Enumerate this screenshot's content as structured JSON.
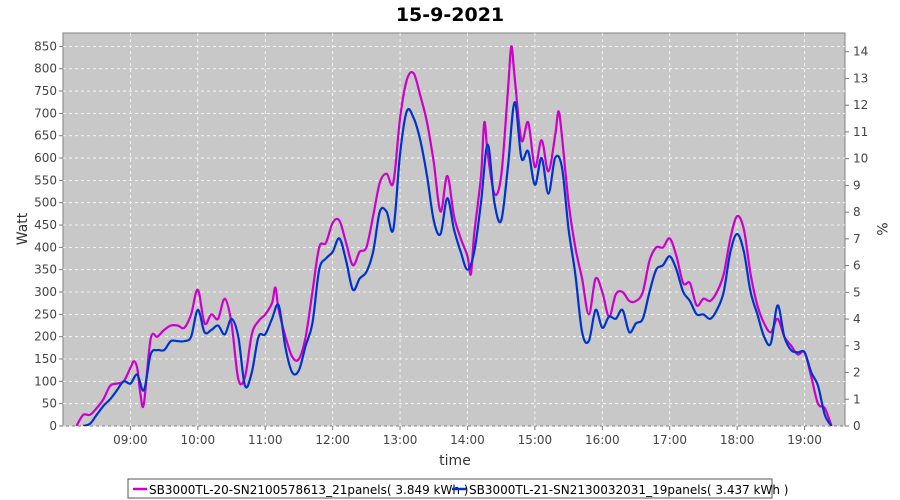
{
  "chart_data": {
    "type": "line",
    "title": "15-9-2021",
    "xlabel": "time",
    "ylabel": "Watt",
    "y2label": "%",
    "xlim": [
      8.0,
      19.6
    ],
    "ylim": [
      0,
      880
    ],
    "y2lim": [
      0,
      14.7
    ],
    "x_ticks": [
      "09:00",
      "10:00",
      "11:00",
      "12:00",
      "13:00",
      "14:00",
      "15:00",
      "16:00",
      "17:00",
      "18:00",
      "19:00"
    ],
    "y_ticks": [
      0,
      50,
      100,
      150,
      200,
      250,
      300,
      350,
      400,
      450,
      500,
      550,
      600,
      650,
      700,
      750,
      800,
      850
    ],
    "y2_ticks": [
      0,
      1,
      2,
      3,
      4,
      5,
      6,
      7,
      8,
      9,
      10,
      11,
      12,
      13,
      14
    ],
    "grid": true,
    "legend_position": "bottom",
    "background": "#c8c8c8",
    "series": [
      {
        "name": "SB3000TL-20-SN2100578613_21panels( 3.849 kWh )",
        "color": "#cc00cc",
        "points": [
          [
            8.2,
            0
          ],
          [
            8.3,
            25
          ],
          [
            8.4,
            25
          ],
          [
            8.5,
            40
          ],
          [
            8.6,
            60
          ],
          [
            8.7,
            90
          ],
          [
            8.8,
            95
          ],
          [
            8.9,
            100
          ],
          [
            9.0,
            130
          ],
          [
            9.05,
            145
          ],
          [
            9.1,
            130
          ],
          [
            9.15,
            70
          ],
          [
            9.2,
            50
          ],
          [
            9.3,
            195
          ],
          [
            9.4,
            200
          ],
          [
            9.5,
            215
          ],
          [
            9.6,
            225
          ],
          [
            9.7,
            225
          ],
          [
            9.8,
            220
          ],
          [
            9.9,
            250
          ],
          [
            10.0,
            305
          ],
          [
            10.1,
            230
          ],
          [
            10.2,
            250
          ],
          [
            10.3,
            240
          ],
          [
            10.4,
            285
          ],
          [
            10.5,
            230
          ],
          [
            10.6,
            105
          ],
          [
            10.7,
            110
          ],
          [
            10.8,
            205
          ],
          [
            10.9,
            235
          ],
          [
            11.0,
            250
          ],
          [
            11.1,
            275
          ],
          [
            11.15,
            310
          ],
          [
            11.2,
            260
          ],
          [
            11.3,
            200
          ],
          [
            11.4,
            155
          ],
          [
            11.5,
            150
          ],
          [
            11.6,
            200
          ],
          [
            11.7,
            300
          ],
          [
            11.8,
            400
          ],
          [
            11.9,
            410
          ],
          [
            12.0,
            455
          ],
          [
            12.1,
            460
          ],
          [
            12.2,
            410
          ],
          [
            12.3,
            360
          ],
          [
            12.4,
            390
          ],
          [
            12.5,
            400
          ],
          [
            12.6,
            470
          ],
          [
            12.7,
            545
          ],
          [
            12.8,
            565
          ],
          [
            12.9,
            545
          ],
          [
            13.0,
            690
          ],
          [
            13.1,
            775
          ],
          [
            13.2,
            790
          ],
          [
            13.3,
            740
          ],
          [
            13.4,
            680
          ],
          [
            13.5,
            590
          ],
          [
            13.6,
            480
          ],
          [
            13.7,
            560
          ],
          [
            13.8,
            470
          ],
          [
            13.9,
            420
          ],
          [
            14.0,
            380
          ],
          [
            14.05,
            340
          ],
          [
            14.1,
            430
          ],
          [
            14.2,
            560
          ],
          [
            14.25,
            680
          ],
          [
            14.3,
            610
          ],
          [
            14.4,
            520
          ],
          [
            14.5,
            560
          ],
          [
            14.6,
            750
          ],
          [
            14.65,
            850
          ],
          [
            14.7,
            780
          ],
          [
            14.8,
            640
          ],
          [
            14.9,
            680
          ],
          [
            15.0,
            580
          ],
          [
            15.1,
            640
          ],
          [
            15.2,
            570
          ],
          [
            15.3,
            650
          ],
          [
            15.35,
            705
          ],
          [
            15.4,
            650
          ],
          [
            15.5,
            500
          ],
          [
            15.6,
            400
          ],
          [
            15.7,
            330
          ],
          [
            15.8,
            250
          ],
          [
            15.9,
            330
          ],
          [
            16.0,
            300
          ],
          [
            16.1,
            245
          ],
          [
            16.2,
            295
          ],
          [
            16.3,
            300
          ],
          [
            16.4,
            280
          ],
          [
            16.5,
            280
          ],
          [
            16.6,
            300
          ],
          [
            16.7,
            370
          ],
          [
            16.8,
            400
          ],
          [
            16.9,
            400
          ],
          [
            17.0,
            420
          ],
          [
            17.1,
            380
          ],
          [
            17.2,
            320
          ],
          [
            17.3,
            320
          ],
          [
            17.4,
            270
          ],
          [
            17.5,
            285
          ],
          [
            17.6,
            280
          ],
          [
            17.7,
            300
          ],
          [
            17.8,
            340
          ],
          [
            17.9,
            420
          ],
          [
            18.0,
            470
          ],
          [
            18.1,
            440
          ],
          [
            18.2,
            340
          ],
          [
            18.3,
            270
          ],
          [
            18.4,
            230
          ],
          [
            18.5,
            210
          ],
          [
            18.6,
            240
          ],
          [
            18.7,
            200
          ],
          [
            18.8,
            180
          ],
          [
            18.9,
            160
          ],
          [
            19.0,
            165
          ],
          [
            19.1,
            110
          ],
          [
            19.2,
            50
          ],
          [
            19.3,
            40
          ],
          [
            19.4,
            0
          ]
        ]
      },
      {
        "name": "SB3000TL-21-SN2130032031_19panels( 3.437 kWh )",
        "color": "#0033cc",
        "points": [
          [
            8.3,
            0
          ],
          [
            8.4,
            5
          ],
          [
            8.5,
            25
          ],
          [
            8.6,
            45
          ],
          [
            8.7,
            60
          ],
          [
            8.8,
            80
          ],
          [
            8.9,
            100
          ],
          [
            9.0,
            95
          ],
          [
            9.1,
            115
          ],
          [
            9.2,
            80
          ],
          [
            9.3,
            160
          ],
          [
            9.4,
            170
          ],
          [
            9.5,
            170
          ],
          [
            9.6,
            190
          ],
          [
            9.7,
            190
          ],
          [
            9.8,
            190
          ],
          [
            9.9,
            200
          ],
          [
            10.0,
            260
          ],
          [
            10.1,
            210
          ],
          [
            10.2,
            215
          ],
          [
            10.3,
            225
          ],
          [
            10.4,
            205
          ],
          [
            10.5,
            240
          ],
          [
            10.6,
            200
          ],
          [
            10.7,
            90
          ],
          [
            10.8,
            120
          ],
          [
            10.9,
            200
          ],
          [
            11.0,
            205
          ],
          [
            11.1,
            240
          ],
          [
            11.2,
            270
          ],
          [
            11.3,
            175
          ],
          [
            11.4,
            120
          ],
          [
            11.5,
            125
          ],
          [
            11.6,
            180
          ],
          [
            11.7,
            230
          ],
          [
            11.8,
            350
          ],
          [
            11.9,
            375
          ],
          [
            12.0,
            390
          ],
          [
            12.1,
            420
          ],
          [
            12.2,
            370
          ],
          [
            12.3,
            305
          ],
          [
            12.4,
            330
          ],
          [
            12.5,
            345
          ],
          [
            12.6,
            390
          ],
          [
            12.7,
            480
          ],
          [
            12.8,
            480
          ],
          [
            12.9,
            440
          ],
          [
            13.0,
            610
          ],
          [
            13.1,
            705
          ],
          [
            13.2,
            690
          ],
          [
            13.3,
            640
          ],
          [
            13.4,
            560
          ],
          [
            13.5,
            460
          ],
          [
            13.6,
            430
          ],
          [
            13.7,
            510
          ],
          [
            13.8,
            440
          ],
          [
            13.9,
            390
          ],
          [
            14.0,
            350
          ],
          [
            14.1,
            390
          ],
          [
            14.2,
            500
          ],
          [
            14.3,
            630
          ],
          [
            14.4,
            500
          ],
          [
            14.5,
            460
          ],
          [
            14.6,
            580
          ],
          [
            14.7,
            725
          ],
          [
            14.8,
            600
          ],
          [
            14.9,
            615
          ],
          [
            15.0,
            540
          ],
          [
            15.1,
            600
          ],
          [
            15.2,
            520
          ],
          [
            15.3,
            600
          ],
          [
            15.4,
            580
          ],
          [
            15.5,
            440
          ],
          [
            15.6,
            340
          ],
          [
            15.7,
            210
          ],
          [
            15.8,
            190
          ],
          [
            15.9,
            260
          ],
          [
            16.0,
            220
          ],
          [
            16.1,
            245
          ],
          [
            16.2,
            240
          ],
          [
            16.3,
            260
          ],
          [
            16.4,
            210
          ],
          [
            16.5,
            230
          ],
          [
            16.6,
            240
          ],
          [
            16.7,
            300
          ],
          [
            16.8,
            350
          ],
          [
            16.9,
            360
          ],
          [
            17.0,
            380
          ],
          [
            17.1,
            350
          ],
          [
            17.2,
            300
          ],
          [
            17.3,
            280
          ],
          [
            17.4,
            250
          ],
          [
            17.5,
            250
          ],
          [
            17.6,
            240
          ],
          [
            17.7,
            260
          ],
          [
            17.8,
            300
          ],
          [
            17.9,
            390
          ],
          [
            18.0,
            430
          ],
          [
            18.1,
            390
          ],
          [
            18.2,
            300
          ],
          [
            18.3,
            250
          ],
          [
            18.4,
            200
          ],
          [
            18.5,
            185
          ],
          [
            18.6,
            270
          ],
          [
            18.7,
            200
          ],
          [
            18.8,
            170
          ],
          [
            18.9,
            165
          ],
          [
            19.0,
            165
          ],
          [
            19.1,
            120
          ],
          [
            19.2,
            90
          ],
          [
            19.3,
            25
          ],
          [
            19.4,
            0
          ]
        ]
      }
    ]
  }
}
